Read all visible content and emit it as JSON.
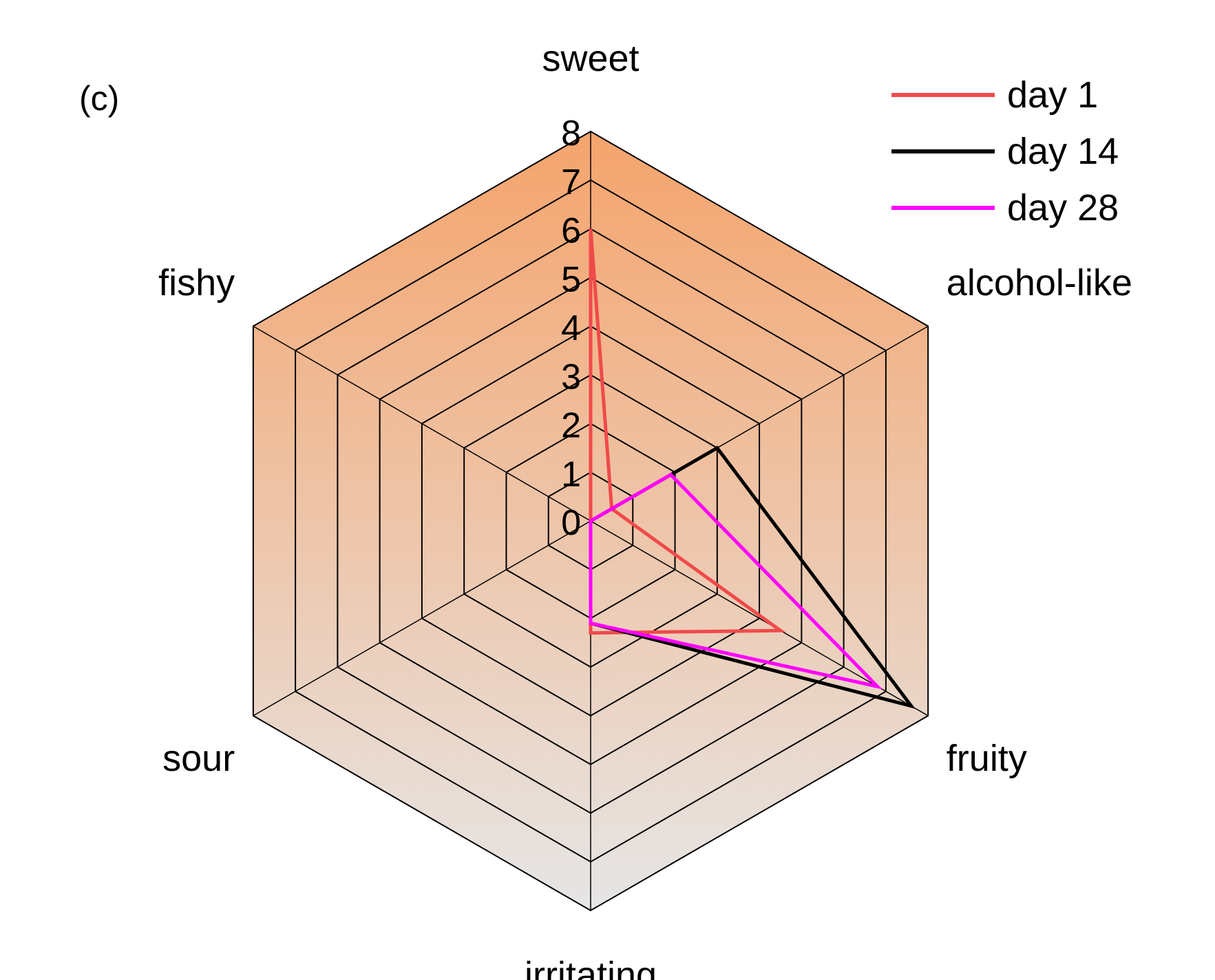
{
  "panel_label": "(c)",
  "chart_data": {
    "type": "radar",
    "title": "",
    "axes": [
      "sweet",
      "alcohol-like",
      "fruity",
      "irritating",
      "sour",
      "fishy"
    ],
    "scale": {
      "min": 0,
      "max": 8,
      "ticks": [
        "0",
        "1",
        "2",
        "3",
        "4",
        "5",
        "6",
        "7",
        "8"
      ],
      "tick_values": [
        0,
        1,
        2,
        3,
        4,
        5,
        6,
        7,
        8
      ]
    },
    "series": [
      {
        "name": "day 1",
        "color": "#f04a4a",
        "values": [
          6,
          0.5,
          4.5,
          2.3,
          0,
          0
        ]
      },
      {
        "name": "day 14",
        "color": "#000000",
        "values": [
          0,
          3.0,
          7.6,
          2.1,
          0,
          0
        ]
      },
      {
        "name": "day 28",
        "color": "#ff00ff",
        "values": [
          0,
          1.9,
          6.8,
          2.1,
          0,
          0
        ]
      }
    ],
    "legend": {
      "position": "top-right",
      "entries": [
        "day 1",
        "day 14",
        "day 28"
      ]
    },
    "background_gradient": {
      "top": "#f5a46c",
      "bottom": "#e6e6e6"
    },
    "grid": true
  }
}
